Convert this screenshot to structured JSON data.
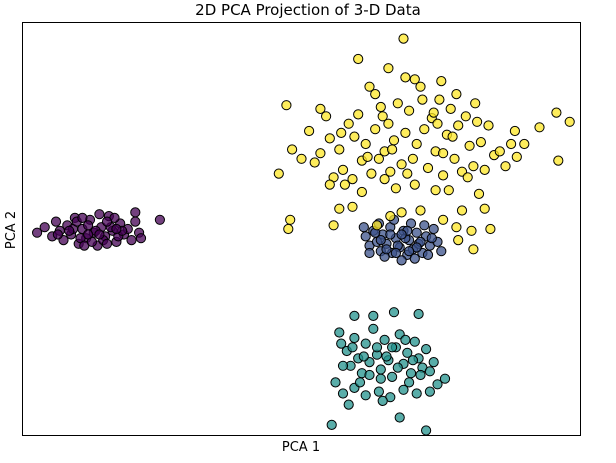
{
  "chart_data": {
    "type": "scatter",
    "title": "2D PCA Projection of 3-D Data",
    "xlabel": "PCA 1",
    "ylabel": "PCA 2",
    "xticks": [],
    "yticks": [],
    "grid": false,
    "legend": "none",
    "series": [
      {
        "color": "#440154",
        "points": [
          [
            -4.8,
            0.9
          ],
          [
            -4.6,
            1.05
          ],
          [
            -4.4,
            0.8
          ],
          [
            -4.3,
            1.2
          ],
          [
            -4.2,
            0.95
          ],
          [
            -4.1,
            0.7
          ],
          [
            -4.0,
            1.1
          ],
          [
            -3.9,
            0.85
          ],
          [
            -3.8,
            1.3
          ],
          [
            -3.7,
            0.6
          ],
          [
            -3.6,
            1.0
          ],
          [
            -3.5,
            0.75
          ],
          [
            -3.4,
            1.25
          ],
          [
            -3.3,
            0.9
          ],
          [
            -3.2,
            0.55
          ],
          [
            -3.1,
            1.05
          ],
          [
            -3.0,
            0.8
          ],
          [
            -2.9,
            1.35
          ],
          [
            -2.8,
            0.95
          ],
          [
            -2.7,
            0.65
          ],
          [
            -2.6,
            1.15
          ],
          [
            -2.5,
            0.85
          ],
          [
            -2.4,
            1.0
          ],
          [
            -2.3,
            0.7
          ],
          [
            -2.2,
            1.2
          ],
          [
            -2.1,
            0.9
          ],
          [
            -3.85,
            1.0
          ],
          [
            -3.65,
            0.75
          ],
          [
            -3.45,
            1.1
          ],
          [
            -3.25,
            0.95
          ],
          [
            -3.05,
            0.7
          ],
          [
            -2.85,
            1.05
          ],
          [
            -2.65,
            0.8
          ],
          [
            -3.55,
            0.55
          ],
          [
            -3.15,
            1.4
          ],
          [
            -2.95,
            0.6
          ],
          [
            -2.75,
            1.3
          ],
          [
            -3.35,
            0.65
          ],
          [
            -3.75,
            1.2
          ],
          [
            -2.55,
            0.95
          ],
          [
            -4.25,
            0.85
          ],
          [
            -1.55,
            1.25
          ],
          [
            -2.05,
            0.75
          ],
          [
            -2.2,
            1.45
          ],
          [
            -3.95,
            0.95
          ],
          [
            -3.45,
            0.85
          ],
          [
            -3.15,
            0.85
          ],
          [
            -2.95,
            1.2
          ],
          [
            -2.7,
            1.0
          ],
          [
            -3.6,
            1.3
          ]
        ]
      },
      {
        "color": "#3b528b",
        "points": [
          [
            3.9,
            0.8
          ],
          [
            4.0,
            0.55
          ],
          [
            4.1,
            0.95
          ],
          [
            4.2,
            0.65
          ],
          [
            4.3,
            0.4
          ],
          [
            4.35,
            0.85
          ],
          [
            4.45,
            0.6
          ],
          [
            4.55,
            1.05
          ],
          [
            4.6,
            0.35
          ],
          [
            4.7,
            0.75
          ],
          [
            4.8,
            0.5
          ],
          [
            4.9,
            0.95
          ],
          [
            5.0,
            0.3
          ],
          [
            5.05,
            0.7
          ],
          [
            5.15,
            0.45
          ],
          [
            5.25,
            0.9
          ],
          [
            5.3,
            0.6
          ],
          [
            5.4,
            0.35
          ],
          [
            5.5,
            0.8
          ],
          [
            5.6,
            0.55
          ],
          [
            5.7,
            1.0
          ],
          [
            5.8,
            0.65
          ],
          [
            5.9,
            0.4
          ],
          [
            4.25,
            1.15
          ],
          [
            4.65,
            1.25
          ],
          [
            5.1,
            1.15
          ],
          [
            5.45,
            1.1
          ],
          [
            4.4,
            0.25
          ],
          [
            4.85,
            0.15
          ],
          [
            5.2,
            0.2
          ],
          [
            5.55,
            0.3
          ],
          [
            4.0,
            0.35
          ],
          [
            3.85,
            1.05
          ],
          [
            4.55,
            0.85
          ],
          [
            4.75,
            0.55
          ],
          [
            4.95,
            0.75
          ],
          [
            5.35,
            0.65
          ],
          [
            4.15,
            0.9
          ],
          [
            5.65,
            0.75
          ],
          [
            4.45,
            0.45
          ],
          [
            5.0,
            0.95
          ],
          [
            4.7,
            0.35
          ],
          [
            4.3,
            0.7
          ],
          [
            5.25,
            0.5
          ],
          [
            4.85,
            0.85
          ],
          [
            5.05,
            0.4
          ]
        ]
      },
      {
        "color": "#21918c",
        "points": [
          [
            3.2,
            -1.8
          ],
          [
            3.4,
            -2.3
          ],
          [
            3.5,
            -2.7
          ],
          [
            3.6,
            -1.95
          ],
          [
            3.7,
            -2.5
          ],
          [
            3.8,
            -2.9
          ],
          [
            3.9,
            -2.1
          ],
          [
            4.0,
            -2.6
          ],
          [
            4.1,
            -1.7
          ],
          [
            4.2,
            -2.4
          ],
          [
            4.3,
            -2.8
          ],
          [
            4.4,
            -2.0
          ],
          [
            4.5,
            -2.55
          ],
          [
            4.6,
            -3.0
          ],
          [
            4.7,
            -2.2
          ],
          [
            4.8,
            -1.85
          ],
          [
            4.9,
            -2.65
          ],
          [
            5.0,
            -2.35
          ],
          [
            5.1,
            -2.9
          ],
          [
            5.2,
            -2.05
          ],
          [
            5.3,
            -2.5
          ],
          [
            5.4,
            -2.75
          ],
          [
            5.5,
            -2.25
          ],
          [
            5.6,
            -2.85
          ],
          [
            5.7,
            -2.6
          ],
          [
            5.8,
            -3.2
          ],
          [
            6.0,
            -3.05
          ],
          [
            3.1,
            -3.15
          ],
          [
            3.3,
            -3.45
          ],
          [
            3.6,
            -3.3
          ],
          [
            3.9,
            -3.5
          ],
          [
            4.25,
            -3.4
          ],
          [
            4.55,
            -3.55
          ],
          [
            4.9,
            -3.35
          ],
          [
            5.25,
            -3.45
          ],
          [
            5.6,
            -3.4
          ],
          [
            3.25,
            -2.1
          ],
          [
            4.1,
            -1.35
          ],
          [
            3.6,
            -1.35
          ],
          [
            4.65,
            -1.25
          ],
          [
            5.3,
            -1.3
          ],
          [
            3.45,
            -3.75
          ],
          [
            4.35,
            -3.65
          ],
          [
            4.8,
            -4.1
          ],
          [
            3.0,
            -4.3
          ],
          [
            5.5,
            -4.45
          ],
          [
            4.2,
            -2.2
          ],
          [
            3.85,
            -2.45
          ],
          [
            4.45,
            -2.45
          ],
          [
            4.75,
            -2.75
          ],
          [
            5.15,
            -2.55
          ],
          [
            3.55,
            -2.2
          ],
          [
            4.0,
            -2.95
          ],
          [
            4.6,
            -2.2
          ],
          [
            5.35,
            -2.95
          ],
          [
            3.75,
            -3.15
          ],
          [
            4.3,
            -3.05
          ],
          [
            5.05,
            -3.15
          ],
          [
            3.3,
            -2.7
          ],
          [
            4.95,
            -2.0
          ]
        ]
      },
      {
        "color": "#fde725",
        "points": [
          [
            1.6,
            2.5
          ],
          [
            1.8,
            4.35
          ],
          [
            1.95,
            3.15
          ],
          [
            2.2,
            2.9
          ],
          [
            2.4,
            3.65
          ],
          [
            2.55,
            2.8
          ],
          [
            2.7,
            3.05
          ],
          [
            2.85,
            4.05
          ],
          [
            2.95,
            3.45
          ],
          [
            3.05,
            2.4
          ],
          [
            3.2,
            3.15
          ],
          [
            3.3,
            2.6
          ],
          [
            3.45,
            3.85
          ],
          [
            3.55,
            2.35
          ],
          [
            3.6,
            3.5
          ],
          [
            3.7,
            4.1
          ],
          [
            3.8,
            2.85
          ],
          [
            3.9,
            3.3
          ],
          [
            4.0,
            4.85
          ],
          [
            4.05,
            2.5
          ],
          [
            4.15,
            3.7
          ],
          [
            4.25,
            2.9
          ],
          [
            4.3,
            4.3
          ],
          [
            4.4,
            3.1
          ],
          [
            4.5,
            3.85
          ],
          [
            4.55,
            2.55
          ],
          [
            4.65,
            3.4
          ],
          [
            4.75,
            4.4
          ],
          [
            4.85,
            2.75
          ],
          [
            4.95,
            3.6
          ],
          [
            5.05,
            4.2
          ],
          [
            5.15,
            2.9
          ],
          [
            5.25,
            3.3
          ],
          [
            5.35,
            4.85
          ],
          [
            5.45,
            3.7
          ],
          [
            5.55,
            2.65
          ],
          [
            5.65,
            4.0
          ],
          [
            5.75,
            3.1
          ],
          [
            5.85,
            4.5
          ],
          [
            5.95,
            2.45
          ],
          [
            6.05,
            3.55
          ],
          [
            6.15,
            4.25
          ],
          [
            6.25,
            2.9
          ],
          [
            6.35,
            3.8
          ],
          [
            6.45,
            2.55
          ],
          [
            6.55,
            4.05
          ],
          [
            6.65,
            3.25
          ],
          [
            6.75,
            2.7
          ],
          [
            6.85,
            3.9
          ],
          [
            6.95,
            3.35
          ],
          [
            7.05,
            2.6
          ],
          [
            7.15,
            3.8
          ],
          [
            7.3,
            3.0
          ],
          [
            7.45,
            3.1
          ],
          [
            7.6,
            2.7
          ],
          [
            7.75,
            3.3
          ],
          [
            7.9,
            2.95
          ],
          [
            8.1,
            3.3
          ],
          [
            8.5,
            3.75
          ],
          [
            8.95,
            4.15
          ],
          [
            9.0,
            2.85
          ],
          [
            9.3,
            3.9
          ],
          [
            3.7,
            5.6
          ],
          [
            4.5,
            5.35
          ],
          [
            5.2,
            5.05
          ],
          [
            5.4,
            4.5
          ],
          [
            5.9,
            5.0
          ],
          [
            6.3,
            4.65
          ],
          [
            6.8,
            4.4
          ],
          [
            4.9,
            6.15
          ],
          [
            5.7,
            4.15
          ],
          [
            4.15,
            4.65
          ],
          [
            4.95,
            5.1
          ],
          [
            1.85,
            1.0
          ],
          [
            1.9,
            1.25
          ],
          [
            3.05,
            1.1
          ],
          [
            3.2,
            1.55
          ],
          [
            4.85,
            1.45
          ],
          [
            5.35,
            1.5
          ],
          [
            5.95,
            1.25
          ],
          [
            6.3,
            1.05
          ],
          [
            6.7,
            0.95
          ],
          [
            6.75,
            0.45
          ],
          [
            6.35,
            0.7
          ],
          [
            7.2,
            1.0
          ],
          [
            6.1,
            2.05
          ],
          [
            6.9,
            1.95
          ],
          [
            7.05,
            1.55
          ],
          [
            4.2,
            1.1
          ],
          [
            3.55,
            1.6
          ],
          [
            4.55,
            1.35
          ],
          [
            6.45,
            1.5
          ],
          [
            3.8,
            2.0
          ],
          [
            5.2,
            2.2
          ],
          [
            3.35,
            2.2
          ],
          [
            5.75,
            2.05
          ],
          [
            4.7,
            2.1
          ],
          [
            4.4,
            2.35
          ],
          [
            5.95,
            3.05
          ],
          [
            2.95,
            2.2
          ],
          [
            6.6,
            2.4
          ],
          [
            2.7,
            4.25
          ],
          [
            7.85,
            3.65
          ],
          [
            4.6,
            3.15
          ],
          [
            5.0,
            2.5
          ],
          [
            5.8,
            3.85
          ],
          [
            3.95,
            2.95
          ],
          [
            4.35,
            4.05
          ],
          [
            3.25,
            3.6
          ],
          [
            6.2,
            3.5
          ]
        ]
      },
      {
        "color": "#5ec962",
        "points": []
      }
    ],
    "xlim": [
      -5.2,
      9.6
    ],
    "ylim": [
      -4.6,
      6.6
    ]
  }
}
